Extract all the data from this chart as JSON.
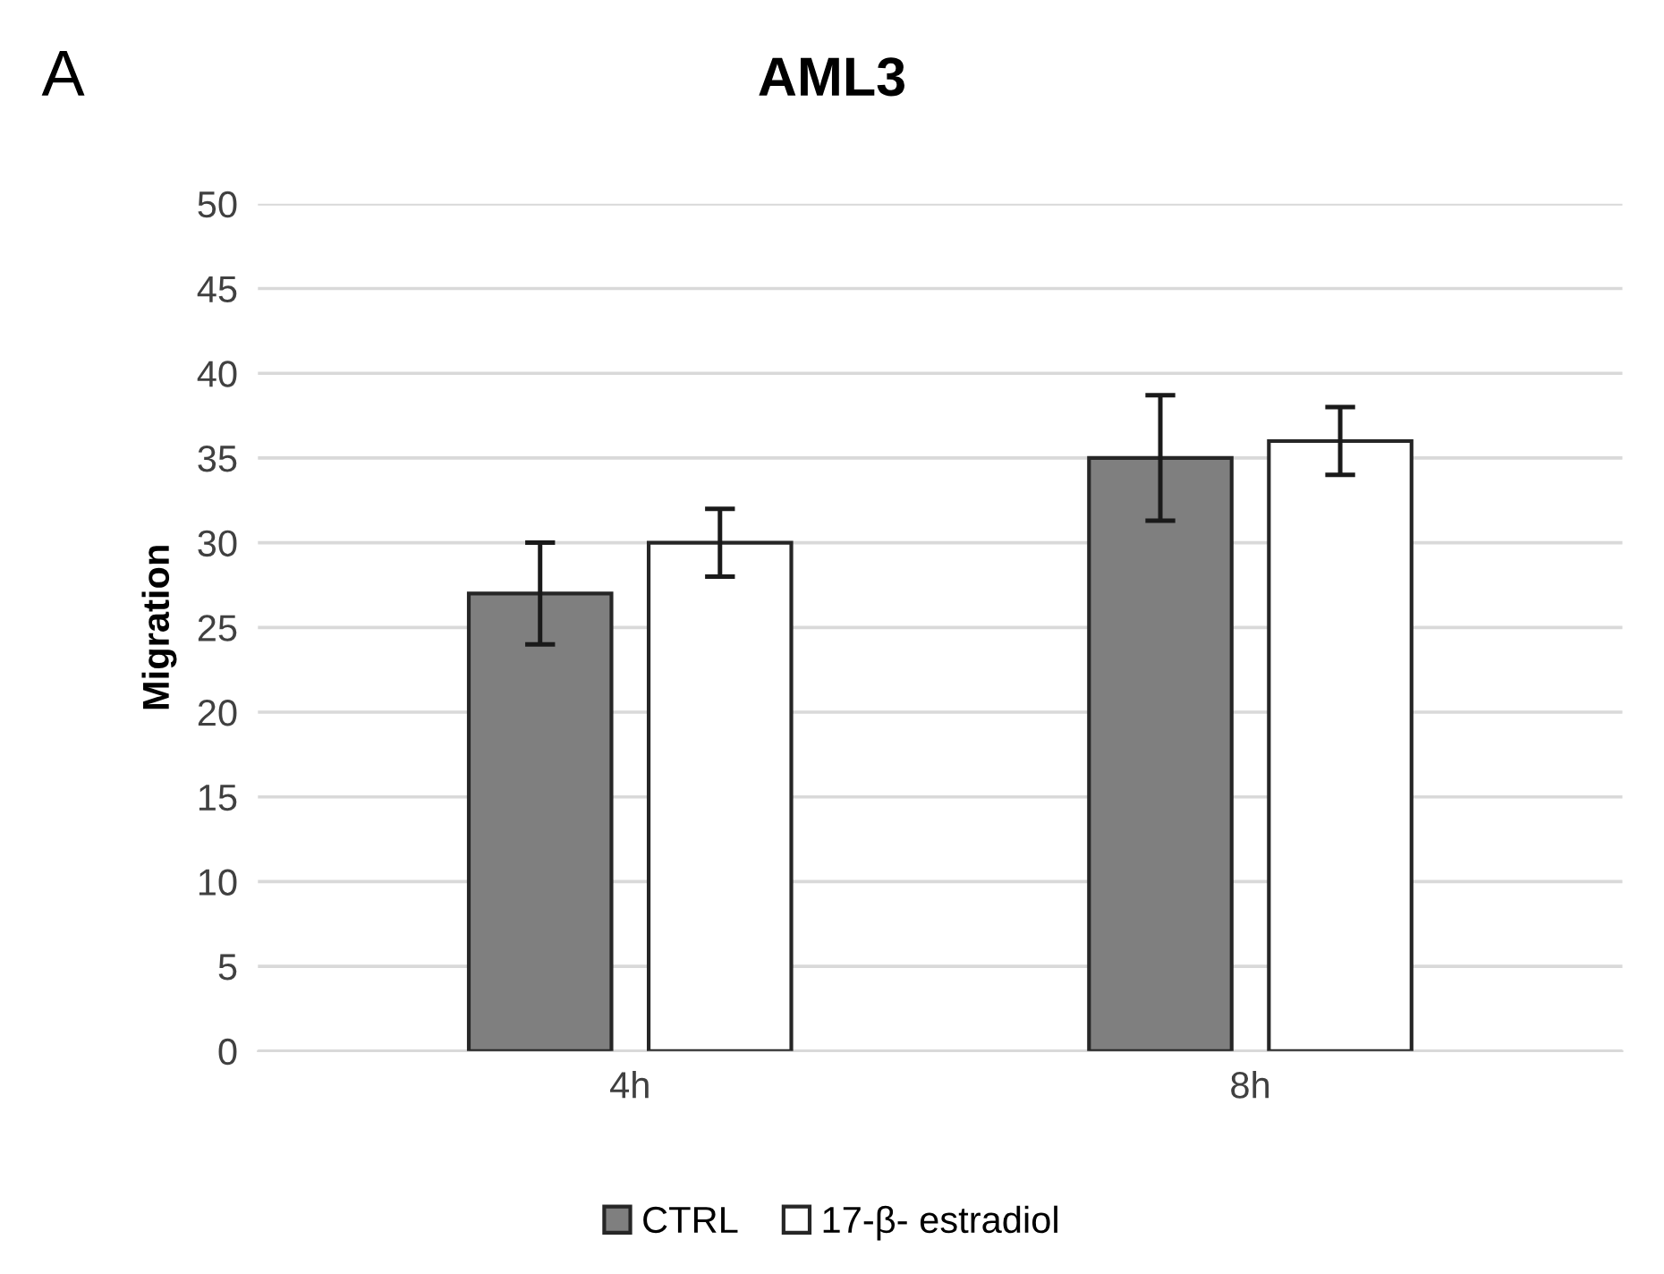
{
  "chart_data": {
    "type": "bar",
    "title": "AML3",
    "ylabel": "Migration",
    "annotations": [
      "A"
    ],
    "categories": [
      "4h",
      "8h"
    ],
    "series": [
      {
        "name": "CTRL",
        "color": "#7f7f7f",
        "values": [
          27,
          35
        ],
        "errors": [
          3,
          3.7
        ]
      },
      {
        "name": "17-β- estradiol",
        "color": "#ffffff",
        "values": [
          30,
          36
        ],
        "errors": [
          2,
          2
        ]
      }
    ],
    "ylim": [
      0,
      50
    ],
    "yticks": [
      0,
      5,
      10,
      15,
      20,
      25,
      30,
      35,
      40,
      45,
      50
    ],
    "grid": "y",
    "legend": "bottom"
  }
}
